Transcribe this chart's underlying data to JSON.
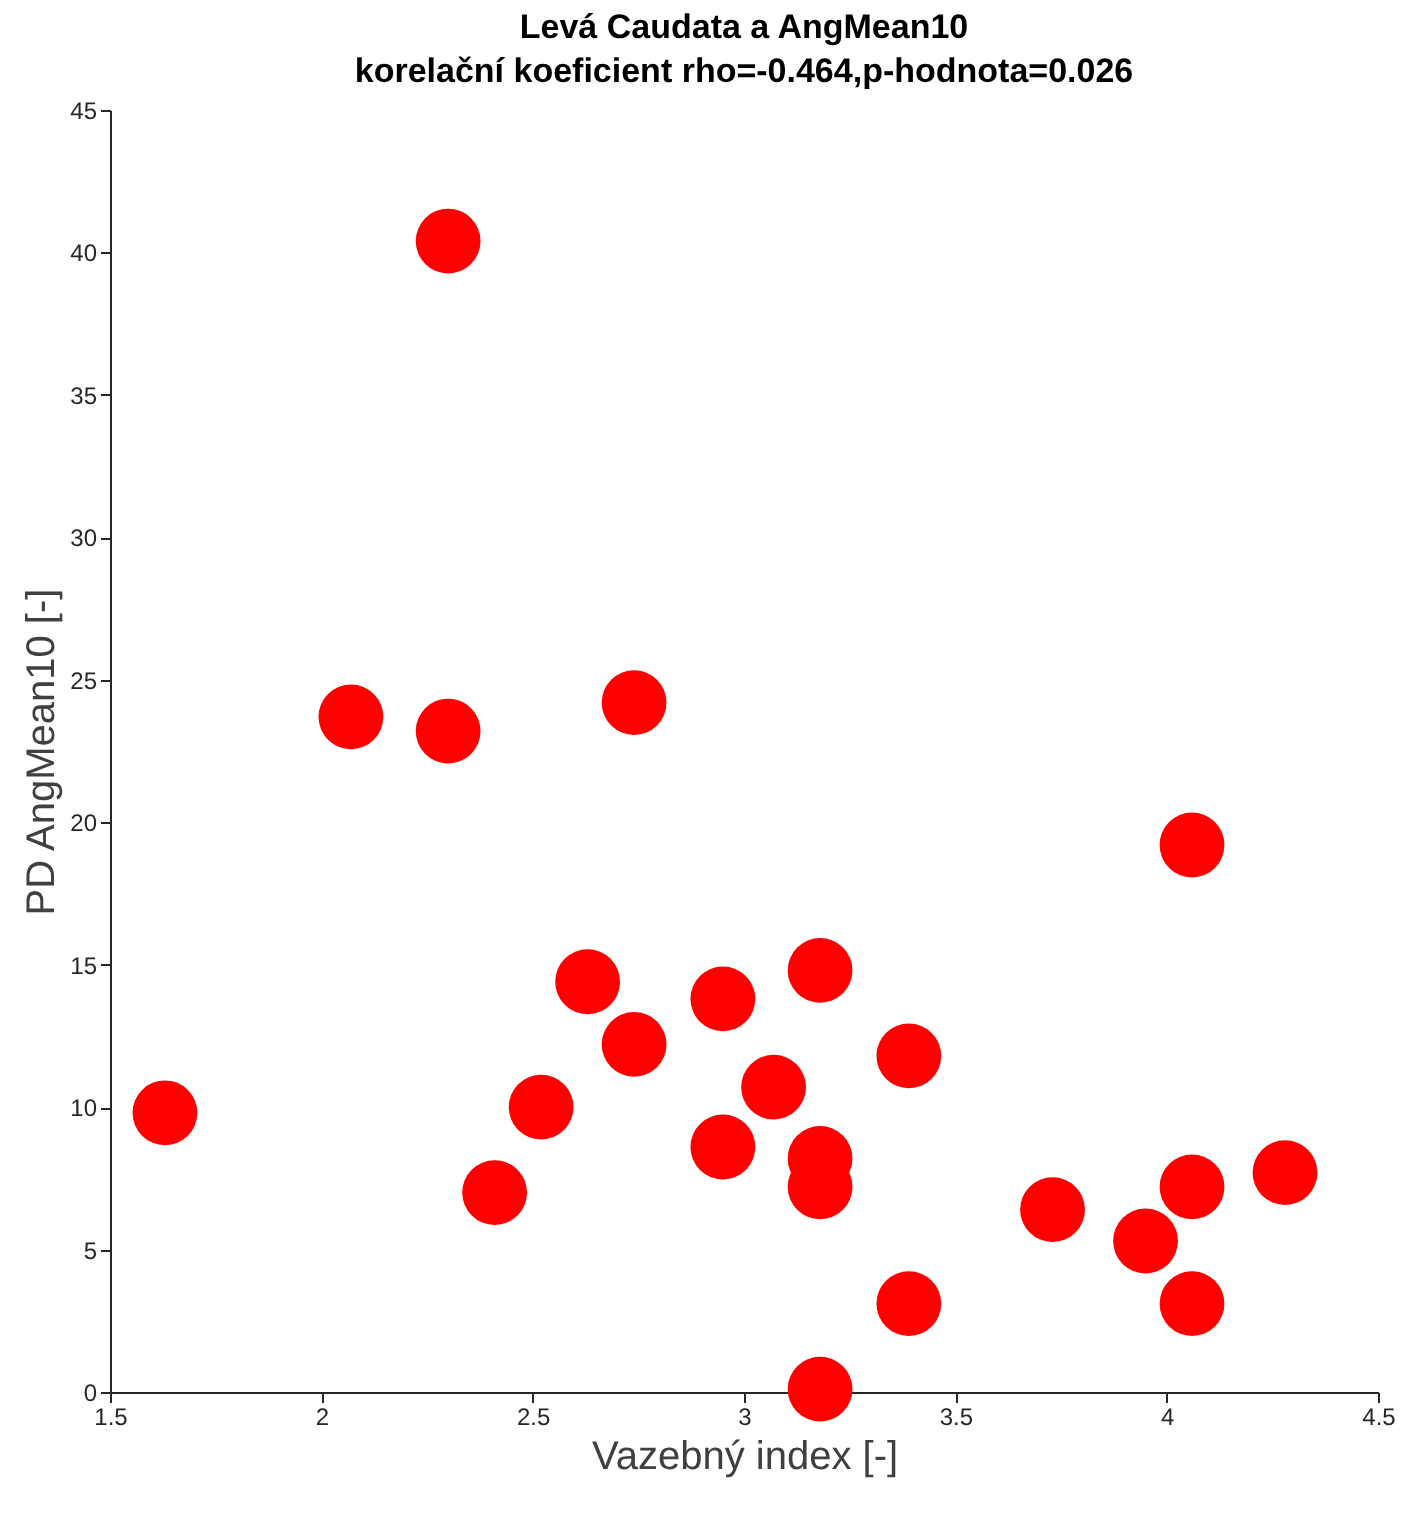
{
  "chart_data": {
    "type": "scatter",
    "title": "Levá Caudata a AngMean10",
    "subtitle": "korelační koeficient rho=-0.464,p-hodnota=0.026",
    "xlabel": "Vazebný index [-]",
    "ylabel": "PD AngMean10 [-]",
    "x": [
      1.63,
      2.07,
      2.3,
      2.3,
      2.41,
      2.52,
      2.63,
      2.74,
      2.74,
      2.95,
      2.95,
      3.07,
      3.18,
      3.18,
      3.18,
      3.18,
      3.39,
      3.39,
      3.73,
      3.95,
      4.06,
      4.06,
      4.06,
      4.28
    ],
    "series": [
      {
        "color": "#ff0000",
        "values": [
          9.8,
          23.7,
          40.4,
          23.2,
          7.0,
          10.0,
          14.4,
          12.2,
          24.2,
          13.8,
          8.6,
          10.7,
          14.8,
          8.2,
          7.2,
          0.1,
          11.8,
          3.1,
          6.4,
          5.3,
          19.2,
          7.2,
          3.1,
          7.7
        ]
      }
    ],
    "xlim": [
      1.5,
      4.5
    ],
    "xticks": [
      1.5,
      2,
      2.5,
      3,
      3.5,
      4,
      4.5
    ],
    "ylim": [
      0,
      45
    ],
    "yticks": [
      0,
      5,
      10,
      15,
      20,
      25,
      30,
      35,
      40,
      45
    ],
    "grid": false,
    "marker": "circle"
  }
}
